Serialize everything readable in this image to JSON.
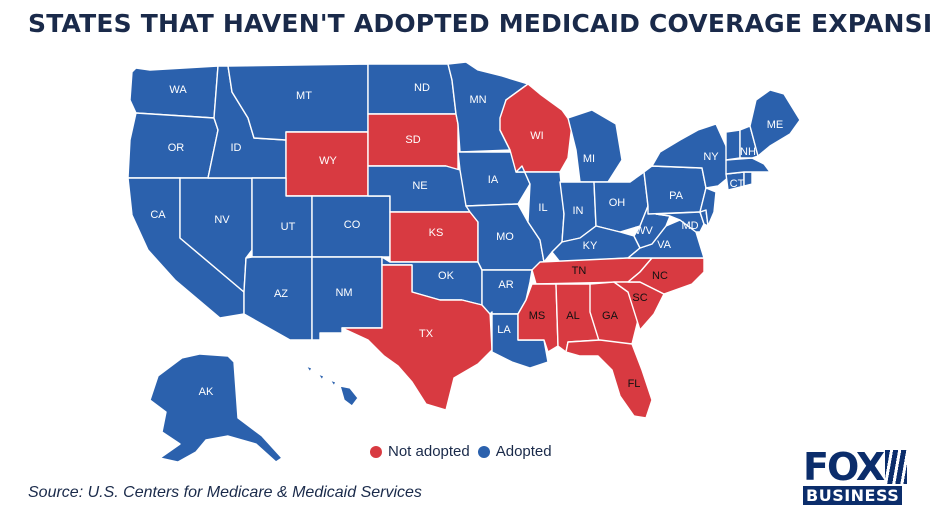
{
  "title": "STATES THAT HAVEN'T ADOPTED MEDICAID COVERAGE EXPANSION",
  "legend": {
    "not_adopted": "Not adopted",
    "adopted": "Adopted"
  },
  "colors": {
    "not_adopted": "#d83a41",
    "adopted": "#2b61ad"
  },
  "source": "Source: U.S. Centers for Medicare & Medicaid Services",
  "logo": {
    "top": "FOX",
    "bottom": "BUSINESS"
  },
  "states": {
    "WA": {
      "label": "WA",
      "status": "adopted"
    },
    "OR": {
      "label": "OR",
      "status": "adopted"
    },
    "CA": {
      "label": "CA",
      "status": "adopted"
    },
    "ID": {
      "label": "ID",
      "status": "adopted"
    },
    "NV": {
      "label": "NV",
      "status": "adopted"
    },
    "MT": {
      "label": "MT",
      "status": "adopted"
    },
    "WY": {
      "label": "WY",
      "status": "not_adopted"
    },
    "UT": {
      "label": "UT",
      "status": "adopted"
    },
    "CO": {
      "label": "CO",
      "status": "adopted"
    },
    "AZ": {
      "label": "AZ",
      "status": "adopted"
    },
    "NM": {
      "label": "NM",
      "status": "adopted"
    },
    "ND": {
      "label": "ND",
      "status": "adopted"
    },
    "SD": {
      "label": "SD",
      "status": "not_adopted"
    },
    "NE": {
      "label": "NE",
      "status": "adopted"
    },
    "KS": {
      "label": "KS",
      "status": "not_adopted"
    },
    "OK": {
      "label": "OK",
      "status": "adopted"
    },
    "TX": {
      "label": "TX",
      "status": "not_adopted"
    },
    "MN": {
      "label": "MN",
      "status": "adopted"
    },
    "IA": {
      "label": "IA",
      "status": "adopted"
    },
    "MO": {
      "label": "MO",
      "status": "adopted"
    },
    "AR": {
      "label": "AR",
      "status": "adopted"
    },
    "LA": {
      "label": "LA",
      "status": "adopted"
    },
    "WI": {
      "label": "WI",
      "status": "not_adopted"
    },
    "IL": {
      "label": "IL",
      "status": "adopted"
    },
    "MI": {
      "label": "MI",
      "status": "adopted"
    },
    "IN": {
      "label": "IN",
      "status": "adopted"
    },
    "OH": {
      "label": "OH",
      "status": "adopted"
    },
    "KY": {
      "label": "KY",
      "status": "adopted"
    },
    "TN": {
      "label": "TN",
      "status": "not_adopted"
    },
    "MS": {
      "label": "MS",
      "status": "not_adopted"
    },
    "AL": {
      "label": "AL",
      "status": "not_adopted"
    },
    "GA": {
      "label": "GA",
      "status": "not_adopted"
    },
    "FL": {
      "label": "FL",
      "status": "not_adopted"
    },
    "SC": {
      "label": "SC",
      "status": "not_adopted"
    },
    "NC": {
      "label": "NC",
      "status": "not_adopted"
    },
    "VA": {
      "label": "VA",
      "status": "adopted"
    },
    "WV": {
      "label": "WV",
      "status": "adopted"
    },
    "PA": {
      "label": "PA",
      "status": "adopted"
    },
    "NY": {
      "label": "NY",
      "status": "adopted"
    },
    "MD": {
      "label": "MD",
      "status": "adopted"
    },
    "NJ": {
      "label": "",
      "status": "adopted"
    },
    "DE": {
      "label": "",
      "status": "adopted"
    },
    "CT": {
      "label": "CT",
      "status": "adopted"
    },
    "RI": {
      "label": "",
      "status": "adopted"
    },
    "MA": {
      "label": "",
      "status": "adopted"
    },
    "VT": {
      "label": "",
      "status": "adopted"
    },
    "NH": {
      "label": "NH",
      "status": "adopted"
    },
    "ME": {
      "label": "ME",
      "status": "adopted"
    },
    "AK": {
      "label": "AK",
      "status": "adopted"
    },
    "HI": {
      "label": "HI",
      "status": "adopted"
    }
  }
}
